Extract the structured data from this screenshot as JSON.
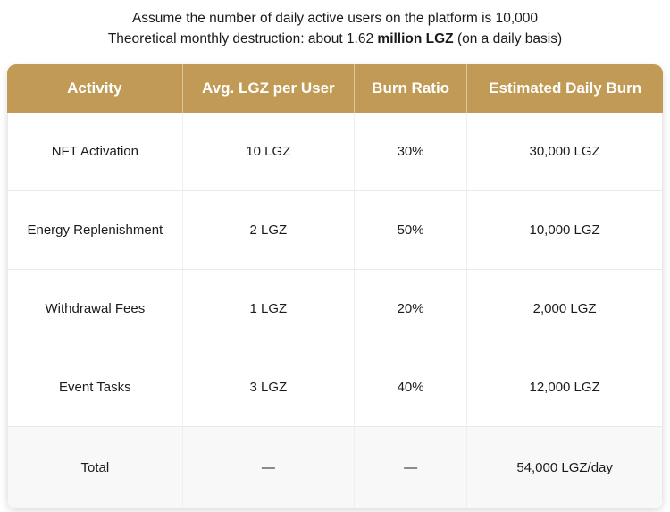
{
  "note": {
    "line1": "Assume the number of daily active users on the platform is 10,000",
    "line2": {
      "prefix": "Theoretical monthly destruction: about 1.62 ",
      "bold": "million LGZ",
      "suffix": " (on a daily basis)"
    }
  },
  "table": {
    "headers": [
      "Activity",
      "Avg. LGZ per User",
      "Burn Ratio",
      "Estimated Daily Burn"
    ],
    "rows": [
      {
        "cells": [
          "NFT Activation",
          "10 LGZ",
          "30%",
          "30,000 LGZ"
        ]
      },
      {
        "cells": [
          "Energy Replenishment",
          "2 LGZ",
          "50%",
          "10,000 LGZ"
        ]
      },
      {
        "cells": [
          "Withdrawal Fees",
          "1 LGZ",
          "20%",
          "2,000 LGZ"
        ]
      },
      {
        "cells": [
          "Event Tasks",
          "3 LGZ",
          "40%",
          "12,000 LGZ"
        ]
      },
      {
        "cells": [
          "Total",
          "—",
          "—",
          "54,000 LGZ/day"
        ]
      }
    ]
  },
  "colors": {
    "header_bg": "#c19a56",
    "header_text": "#ffffff",
    "body_text": "#1c1c1c",
    "row_border": "#e9e9ea",
    "total_row_bg": "#f8f8f9",
    "page_bg": "#ffffff"
  }
}
